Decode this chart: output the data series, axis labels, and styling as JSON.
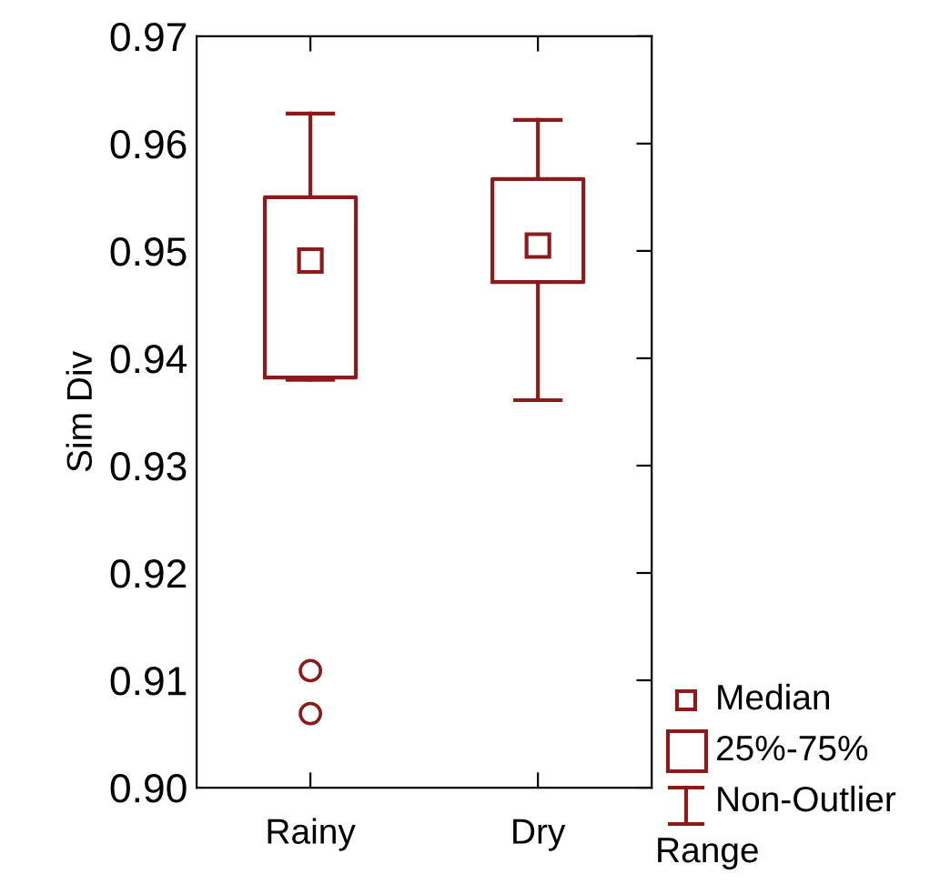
{
  "chart_data": {
    "type": "box",
    "ylabel": "Sim Div",
    "categories": [
      "Rainy",
      "Dry"
    ],
    "color": "#8b1a1a",
    "boxes": [
      {
        "low": 0.938,
        "q1": 0.9382,
        "median": 0.9491,
        "q3": 0.955,
        "high": 0.9628,
        "outliers": [
          0.9109,
          0.9069
        ]
      },
      {
        "low": 0.9361,
        "q1": 0.9471,
        "median": 0.9505,
        "q3": 0.9567,
        "high": 0.9622
      }
    ],
    "ylim": [
      0.9,
      0.97
    ],
    "yticks": [
      {
        "value": 0.9,
        "label": "0.90"
      },
      0.91,
      0.92,
      0.93,
      0.94,
      0.95,
      0.96,
      0.97
    ],
    "grid": false,
    "marker": "square",
    "annotations": [
      "Median",
      "25%-75%",
      "Non-Outlier Range"
    ]
  }
}
